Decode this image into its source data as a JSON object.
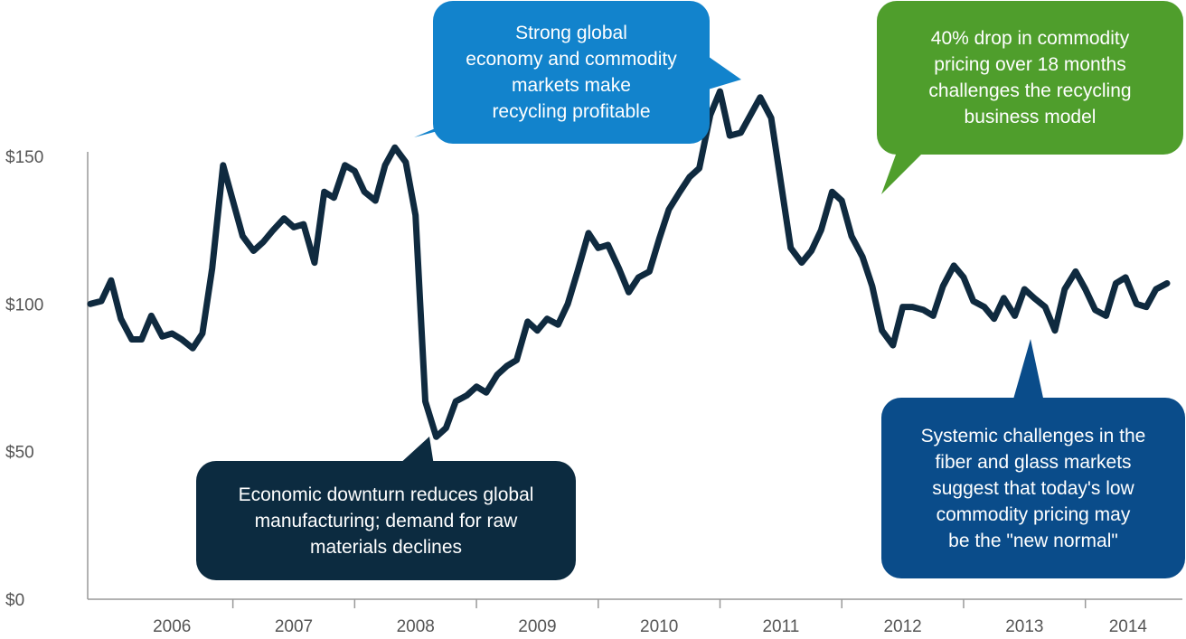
{
  "chart_data": {
    "type": "line",
    "title": "",
    "xlabel": "",
    "ylabel": "",
    "ylim": [
      0,
      150
    ],
    "yticks": [
      0,
      50,
      100,
      150
    ],
    "ytick_labels": [
      "$0",
      "$50",
      "$100",
      "$150"
    ],
    "xlim": [
      2005.83,
      2014.7
    ],
    "year_labels": [
      "2006",
      "2007",
      "2008",
      "2009",
      "2010",
      "2011",
      "2012",
      "2013",
      "2014"
    ],
    "grid": false,
    "legend": "none",
    "line_color": "#0f2a3f",
    "series": [
      {
        "x": [
          2005.83,
          2005.92,
          2006.0,
          2006.08,
          2006.17,
          2006.25,
          2006.33,
          2006.42,
          2006.5,
          2006.58,
          2006.67,
          2006.75,
          2006.83,
          2006.92,
          2007.0,
          2007.08,
          2007.17,
          2007.25,
          2007.33,
          2007.42,
          2007.5,
          2007.58,
          2007.67,
          2007.75,
          2007.83,
          2007.92,
          2008.0,
          2008.08,
          2008.17,
          2008.25,
          2008.33,
          2008.42,
          2008.5,
          2008.58,
          2008.67,
          2008.75,
          2008.83,
          2008.92,
          2009.0,
          2009.08,
          2009.17,
          2009.25,
          2009.33,
          2009.42,
          2009.5,
          2009.58,
          2009.67,
          2009.75,
          2009.83,
          2009.92,
          2010.0,
          2010.08,
          2010.17,
          2010.25,
          2010.33,
          2010.42,
          2010.5,
          2010.58,
          2010.67,
          2010.75,
          2010.83,
          2010.92,
          2011.0,
          2011.08,
          2011.17,
          2011.25,
          2011.33,
          2011.42,
          2011.5,
          2011.58,
          2011.67,
          2011.75,
          2011.83,
          2011.92,
          2012.0,
          2012.08,
          2012.17,
          2012.25,
          2012.33,
          2012.42,
          2012.5,
          2012.58,
          2012.67,
          2012.75,
          2012.83,
          2012.92,
          2013.0,
          2013.08,
          2013.17,
          2013.25,
          2013.33,
          2013.42,
          2013.5,
          2013.58,
          2013.67,
          2013.75,
          2013.83,
          2013.92,
          2014.0,
          2014.08,
          2014.17,
          2014.25,
          2014.33,
          2014.42,
          2014.5,
          2014.58,
          2014.67
        ],
        "values": [
          100,
          101,
          108,
          95,
          88,
          88,
          96,
          89,
          90,
          88,
          85,
          90,
          112,
          147,
          135,
          123,
          118,
          121,
          125,
          129,
          126,
          127,
          114,
          138,
          136,
          147,
          145,
          138,
          135,
          147,
          153,
          148,
          130,
          67,
          55,
          58,
          67,
          69,
          72,
          70,
          76,
          79,
          81,
          94,
          91,
          95,
          93,
          100,
          111,
          124,
          119,
          120,
          112,
          104,
          109,
          111,
          122,
          132,
          138,
          143,
          146,
          164,
          172,
          157,
          158,
          164,
          170,
          163,
          141,
          119,
          114,
          118,
          125,
          138,
          135,
          123,
          116,
          106,
          91,
          86,
          99,
          99,
          98,
          96,
          106,
          113,
          109,
          101,
          99,
          95,
          102,
          96,
          105,
          102,
          99,
          91,
          105,
          111,
          105,
          98,
          96,
          107,
          109,
          100,
          99,
          105,
          107
        ]
      }
    ]
  },
  "annotations": {
    "boom": "Strong global\neconomy and commodity\nmarkets make\nrecycling profitable",
    "drop": "40% drop in commodity\npricing  over 18 months\nchallenges the recycling\nbusiness model",
    "downturn": "Economic downturn reduces global\nmanufacturing;  demand for raw\nmaterials declines",
    "systemic": "Systemic challenges in the\nfiber and glass markets\nsuggest that today's   low\ncommodity pricing may\nbe the \"new normal\""
  },
  "colors": {
    "boom": "#1283cc",
    "drop": "#4f9e2c",
    "downturn": "#0c2b40",
    "systemic": "#0a4c8a"
  }
}
